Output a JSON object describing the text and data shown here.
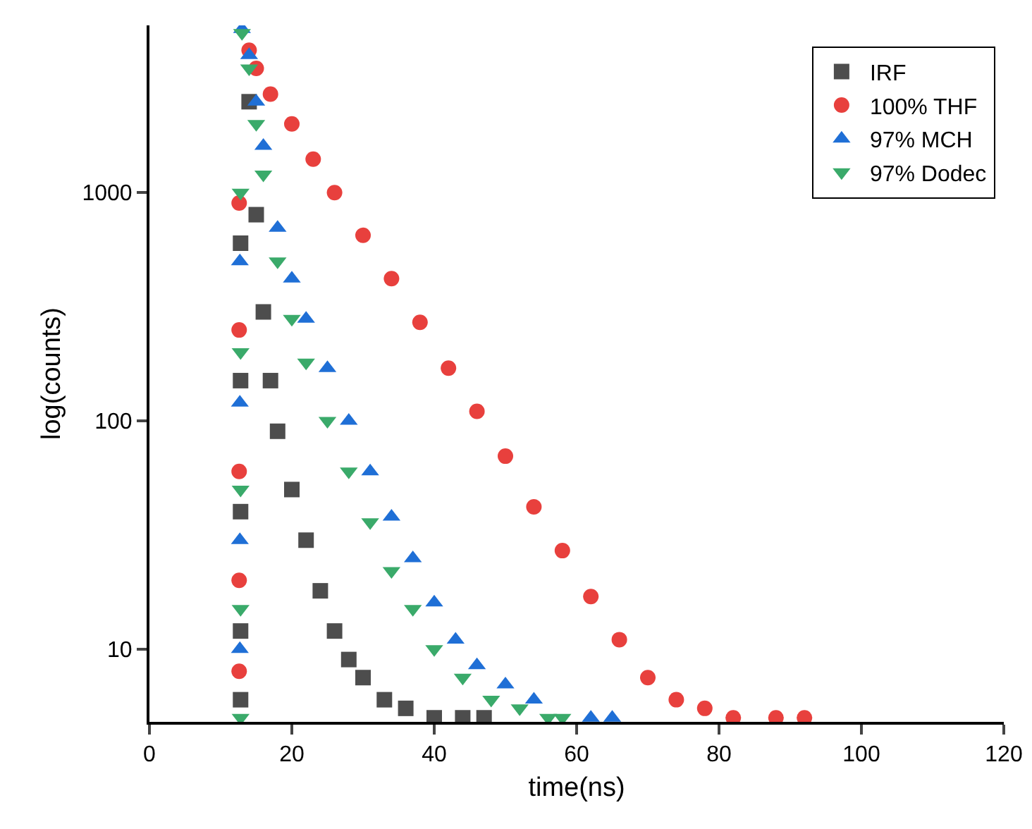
{
  "chart_data": {
    "type": "scatter",
    "xlabel": "time(ns)",
    "ylabel": "log(counts)",
    "log": "y",
    "xlim": [
      0,
      120
    ],
    "xticks": [
      0,
      20,
      40,
      60,
      80,
      100,
      120
    ],
    "ylim": [
      4.8,
      5400
    ],
    "yticks": [
      10,
      100,
      1000
    ],
    "grid": false,
    "legend": "top right",
    "series": [
      {
        "name": "IRF",
        "color": "#4d4d4d",
        "marker": "square",
        "x": [
          12.8,
          12.8,
          12.8,
          12.8,
          12.8,
          13,
          14,
          15,
          16,
          17,
          18,
          20,
          22,
          24,
          26,
          28,
          30,
          33,
          36,
          40,
          44,
          47
        ],
        "values": [
          6,
          12,
          40,
          150,
          600,
          null,
          2500,
          800,
          300,
          150,
          90,
          50,
          30,
          18,
          12,
          9,
          7.5,
          6,
          5.5,
          5,
          5,
          5
        ]
      },
      {
        "name": "100% THF",
        "color": "#e8403d",
        "marker": "circle",
        "x": [
          12.6,
          12.6,
          12.6,
          12.6,
          12.6,
          13,
          14,
          15,
          17,
          20,
          23,
          26,
          30,
          34,
          38,
          42,
          46,
          50,
          54,
          58,
          62,
          66,
          70,
          74,
          78,
          82,
          88,
          92
        ],
        "values": [
          8,
          20,
          60,
          250,
          900,
          null,
          4200,
          3500,
          2700,
          2000,
          1400,
          1000,
          650,
          420,
          270,
          170,
          110,
          70,
          42,
          27,
          17,
          11,
          7.5,
          6,
          5.5,
          5,
          5,
          5
        ]
      },
      {
        "name": "97% MCH",
        "color": "#1f6fd6",
        "marker": "triangle",
        "x": [
          12.7,
          12.7,
          12.7,
          12.7,
          13,
          14,
          15,
          16,
          18,
          20,
          22,
          25,
          28,
          31,
          34,
          37,
          40,
          43,
          46,
          50,
          54,
          62,
          65
        ],
        "values": [
          10,
          30,
          120,
          500,
          5200,
          4000,
          2500,
          1600,
          700,
          420,
          280,
          170,
          100,
          60,
          38,
          25,
          16,
          11,
          8.5,
          7,
          6,
          5,
          5
        ]
      },
      {
        "name": "97% Dodec",
        "color": "#3aaa6a",
        "marker": "triangle-down",
        "x": [
          12.8,
          12.8,
          12.8,
          12.8,
          12.8,
          13,
          14,
          15,
          16,
          18,
          20,
          22,
          25,
          28,
          31,
          34,
          37,
          40,
          44,
          48,
          52,
          56,
          58
        ],
        "values": [
          5,
          15,
          50,
          200,
          1000,
          5000,
          3500,
          2000,
          1200,
          500,
          280,
          180,
          100,
          60,
          36,
          22,
          15,
          10,
          7.5,
          6,
          5.5,
          5,
          5
        ]
      }
    ]
  }
}
